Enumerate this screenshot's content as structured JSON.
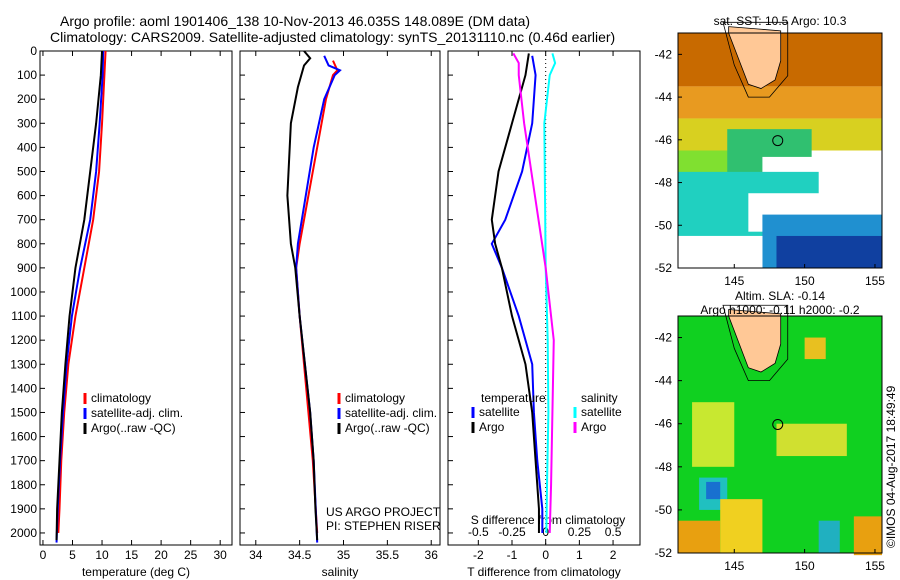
{
  "title_line1": "Argo profile: aoml 1901406_138 10-Nov-2013 46.035S 148.089E (DM data)",
  "title_line2": "Climatology: CARS2009. Satellite-adjusted climatology: synTS_20131110.nc (0.46d earlier)",
  "credit": "US ARGO PROJECT",
  "pi": "PI: STEPHEN RISER",
  "stamp": "©IMOS 04-Aug-2017 18:49:49",
  "colors": {
    "climatology": "#ff0000",
    "satellite": "#0000ff",
    "argo": "#000000",
    "sal_sat": "#00ffff",
    "sal_argo": "#ff00ff"
  },
  "chart_data": [
    {
      "type": "line",
      "id": "temp",
      "xlabel": "temperature (deg C)",
      "xlim": [
        -0.5,
        32
      ],
      "ylim": [
        0,
        2050
      ],
      "yticks": [
        0,
        100,
        200,
        300,
        400,
        500,
        600,
        700,
        800,
        900,
        1000,
        1100,
        1200,
        1300,
        1400,
        1500,
        1600,
        1700,
        1800,
        1900,
        2000
      ],
      "xticks": [
        0,
        5,
        10,
        15,
        20,
        25,
        30
      ],
      "legend": [
        "climatology",
        "satellite-adj. clim.",
        "Argo(..raw -QC)"
      ],
      "series": [
        {
          "name": "climatology",
          "color": "#ff0000",
          "depth": [
            0,
            100,
            300,
            500,
            700,
            900,
            1100,
            1300,
            1500,
            1700,
            1900,
            2000
          ],
          "values": [
            10.6,
            10.4,
            10.0,
            9.5,
            8.5,
            7.0,
            5.5,
            4.3,
            3.6,
            3.1,
            2.8,
            2.6
          ]
        },
        {
          "name": "satellite-adj. clim.",
          "color": "#0000ff",
          "depth": [
            0,
            100,
            300,
            500,
            700,
            900,
            1100,
            1300,
            1500,
            1700,
            1900,
            2040
          ],
          "values": [
            10.2,
            10.1,
            9.6,
            9.0,
            8.0,
            6.3,
            4.9,
            4.0,
            3.4,
            2.9,
            2.5,
            2.3
          ]
        },
        {
          "name": "Argo(..raw -QC)",
          "color": "#000000",
          "depth": [
            0,
            100,
            300,
            500,
            700,
            900,
            1100,
            1300,
            1500,
            1700,
            1900,
            2030
          ],
          "values": [
            10.0,
            9.8,
            9.0,
            8.0,
            7.0,
            5.5,
            4.5,
            3.8,
            3.2,
            2.8,
            2.4,
            2.3
          ]
        }
      ]
    },
    {
      "type": "line",
      "id": "sal",
      "xlabel": "salinity",
      "xlim": [
        33.82,
        36.1
      ],
      "ylim": [
        0,
        2050
      ],
      "xticks": [
        34,
        34.5,
        35,
        35.5,
        36
      ],
      "legend": [
        "climatology",
        "satellite-adj. clim.",
        "Argo(..raw -QC)"
      ],
      "series": [
        {
          "name": "climatology",
          "color": "#ff0000",
          "depth": [
            40,
            80,
            100,
            200,
            400,
            600,
            800,
            900,
            1100,
            1300,
            1500,
            1700,
            2000
          ],
          "values": [
            34.88,
            34.93,
            34.88,
            34.8,
            34.7,
            34.6,
            34.5,
            34.46,
            34.5,
            34.55,
            34.6,
            34.65,
            34.7
          ]
        },
        {
          "name": "satellite-adj. clim.",
          "color": "#0000ff",
          "depth": [
            20,
            60,
            80,
            100,
            200,
            400,
            600,
            800,
            900,
            1100,
            1300,
            1500,
            1700,
            2040
          ],
          "values": [
            34.78,
            34.83,
            34.96,
            34.9,
            34.78,
            34.66,
            34.57,
            34.48,
            34.46,
            34.5,
            34.56,
            34.62,
            34.66,
            34.7
          ]
        },
        {
          "name": "Argo(..raw -QC)",
          "color": "#000000",
          "depth": [
            0,
            30,
            60,
            150,
            300,
            600,
            800,
            900,
            1100,
            1300,
            1500,
            1700,
            1900,
            2030
          ],
          "values": [
            34.55,
            34.62,
            34.55,
            34.48,
            34.4,
            34.36,
            34.4,
            34.45,
            34.5,
            34.56,
            34.62,
            34.66,
            34.68,
            34.7
          ]
        }
      ]
    },
    {
      "type": "line",
      "id": "diff",
      "xlabel": "T difference from climatology",
      "x2label": "S difference from climatology",
      "xlim": [
        -2.9,
        2.8
      ],
      "ylim": [
        0,
        2050
      ],
      "xticks": [
        -2,
        -1,
        0,
        1,
        2
      ],
      "x2ticks": [
        -0.5,
        -0.25,
        0,
        0.25,
        0.5
      ],
      "legend_titles": [
        "temperature",
        "salinity"
      ],
      "legend": [
        "satellite",
        "Argo",
        "satellite",
        "Argo"
      ],
      "series": [
        {
          "name": "T satellite",
          "color": "#0000ff",
          "depth": [
            20,
            100,
            300,
            500,
            700,
            800,
            900,
            1100,
            1300,
            1500,
            1700,
            1900,
            2000
          ],
          "values": [
            -0.4,
            -0.3,
            -0.4,
            -0.7,
            -1.2,
            -1.6,
            -1.3,
            -0.8,
            -0.4,
            -0.35,
            -0.25,
            -0.1,
            -0.1
          ]
        },
        {
          "name": "T Argo",
          "color": "#000000",
          "depth": [
            10,
            100,
            300,
            500,
            700,
            800,
            900,
            1100,
            1300,
            1500,
            1700,
            1900,
            2000
          ],
          "values": [
            -0.5,
            -0.6,
            -1.0,
            -1.4,
            -1.6,
            -1.5,
            -1.3,
            -1.0,
            -0.6,
            -0.4,
            -0.3,
            -0.2,
            -0.2
          ]
        },
        {
          "name": "S satellite",
          "color": "#00ffff",
          "depth": [
            10,
            50,
            100,
            300,
            600,
            900,
            1200,
            1500,
            1800,
            2000
          ],
          "values": [
            0.05,
            0.07,
            0.03,
            -0.01,
            -0.005,
            0.0,
            0.015,
            0.02,
            0.01,
            0.005
          ]
        },
        {
          "name": "S Argo",
          "color": "#ff00ff",
          "depth": [
            10,
            50,
            100,
            300,
            600,
            900,
            1200,
            1500,
            1800,
            2000
          ],
          "values": [
            -0.24,
            -0.2,
            -0.2,
            -0.16,
            -0.08,
            0.0,
            0.06,
            0.05,
            0.04,
            0.03
          ]
        }
      ]
    },
    {
      "type": "heatmap",
      "id": "sst",
      "title": "sat. SST: 10.5  Argo: 10.3",
      "xticks": [
        145,
        150,
        155
      ],
      "yticks": [
        -42,
        -44,
        -46,
        -48,
        -50,
        -52
      ],
      "argo_position": [
        148.089,
        -46.035
      ]
    },
    {
      "type": "heatmap",
      "id": "sla",
      "title1": "Altim. SLA: -0.14",
      "title2": "Argo h1000: -0.11 h2000: -0.2",
      "xticks": [
        145,
        150,
        155
      ],
      "yticks": [
        -42,
        -44,
        -46,
        -48,
        -50,
        -52
      ],
      "argo_position": [
        148.089,
        -46.035
      ]
    }
  ]
}
